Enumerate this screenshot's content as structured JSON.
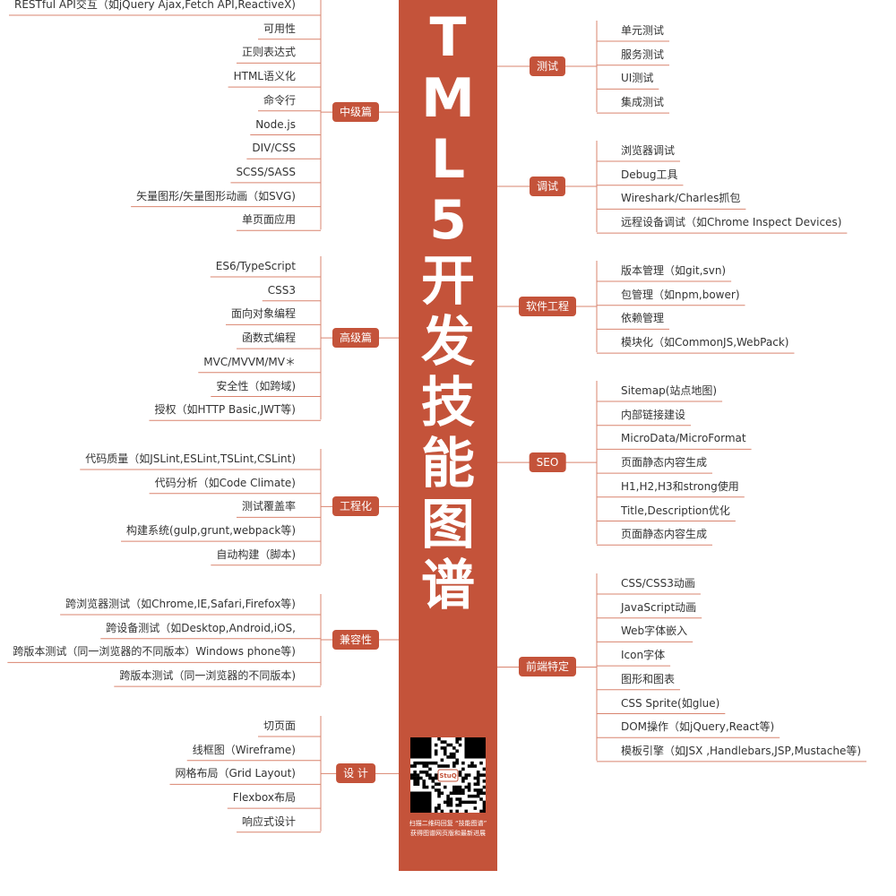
{
  "title": {
    "chars": [
      "T",
      "M",
      "L",
      "5",
      "开",
      "发",
      "技",
      "能",
      "图",
      "谱"
    ]
  },
  "qr": {
    "logo_text": "StuQ",
    "caption_line1": "扫描二维码回复 “技能图谱”",
    "caption_line2": "获得图谱网页版和最新进展"
  },
  "colors": {
    "accent": "#C4533A",
    "line": "#D9846F",
    "text": "#333333"
  },
  "left_branches": [
    {
      "label": "中级篇",
      "items": [
        "RESTful API交互（如jQuery Ajax,Fetch API,ReactiveX)",
        "可用性",
        "正则表达式",
        "HTML语义化",
        "命令行",
        "Node.js",
        "DIV/CSS",
        "SCSS/SASS",
        "矢量图形/矢量图形动画（如SVG)",
        "单页面应用"
      ]
    },
    {
      "label": "高级篇",
      "items": [
        "ES6/TypeScript",
        "CSS3",
        "面向对象编程",
        "函数式编程",
        "MVC/MVVM/MV＊",
        "安全性（如跨域)",
        "授权（如HTTP Basic,JWT等)"
      ]
    },
    {
      "label": "工程化",
      "items": [
        "代码质量（如JSLint,ESLint,TSLint,CSLint)",
        "代码分析（如Code  Climate)",
        "测试覆盖率",
        "构建系统(gulp,grunt,webpack等)",
        "自动构建（脚本)"
      ]
    },
    {
      "label": "兼容性",
      "items": [
        "跨浏览器测试（如Chrome,IE,Safari,Firefox等)",
        "跨设备测试（如Desktop,Android,iOS,",
        "跨版本测试（同一浏览器的不同版本）Windows phone等)",
        "跨版本测试（同一浏览器的不同版本)"
      ]
    },
    {
      "label": "设 计",
      "items": [
        "切页面",
        "线框图（Wireframe)",
        "网格布局（Grid Layout)",
        "Flexbox布局",
        "响应式设计"
      ]
    }
  ],
  "right_branches": [
    {
      "label": "测试",
      "items": [
        "单元测试",
        "服务测试",
        "UI测试",
        "集成测试"
      ]
    },
    {
      "label": "调试",
      "items": [
        "浏览器调试",
        "Debug工具",
        "Wireshark/Charles抓包",
        "远程设备调试（如Chrome Inspect Devices)"
      ]
    },
    {
      "label": "软件工程",
      "items": [
        "版本管理（如git,svn)",
        "包管理（如npm,bower)",
        "依赖管理",
        "模块化（如CommonJS,WebPack)"
      ]
    },
    {
      "label": "SEO",
      "items": [
        "Sitemap(站点地图)",
        "内部链接建设",
        "MicroData/MicroFormat",
        "页面静态内容生成",
        "H1,H2,H3和strong使用",
        "Title,Description优化",
        "页面静态内容生成"
      ]
    },
    {
      "label": "前端特定",
      "items": [
        "CSS/CSS3动画",
        "JavaScript动画",
        "Web字体嵌入",
        "Icon字体",
        "图形和图表",
        "CSS Sprite(如glue)",
        "DOM操作（如jQuery,React等)",
        "模板引擎（如JSX ,Handlebars,JSP,Mustache等)"
      ]
    }
  ]
}
